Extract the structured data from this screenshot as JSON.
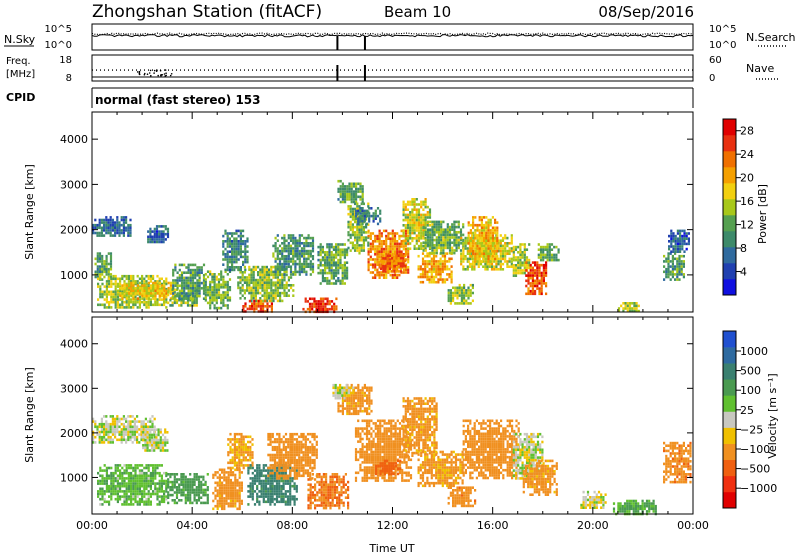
{
  "header": {
    "station": "Zhongshan Station (fitACF)",
    "beam": "Beam 10",
    "date": "08/Sep/2016"
  },
  "sky_panel": {
    "left_label": "N.Sky",
    "right_label": "N.Search",
    "tick_top": "10^5",
    "tick_bottom": "10^0",
    "right_tick_top": "10^5",
    "right_tick_bottom": "10^0"
  },
  "freq_panel": {
    "left_label_1": "Freq.",
    "left_label_2": "[MHz]",
    "right_label": "Nave",
    "left_ticks": [
      "18",
      "8"
    ],
    "right_ticks": [
      "60",
      "0"
    ]
  },
  "cpid": {
    "label": "CPID",
    "value": "normal (fast stereo) 153"
  },
  "colors": {
    "power_scale": [
      "#1010e0",
      "#2040b0",
      "#2f6a9e",
      "#3d8a6a",
      "#55a050",
      "#a8c81a",
      "#f2d010",
      "#f5a000",
      "#f07000",
      "#e83010",
      "#e00000"
    ],
    "velocity_scale": [
      "#2050d0",
      "#2e6aa0",
      "#3a8070",
      "#4a9a50",
      "#60c030",
      "#c8c8c0",
      "#f0c000",
      "#f09020",
      "#f06010",
      "#f03010",
      "#e00000"
    ]
  },
  "chart_data": [
    {
      "type": "heatmap",
      "panel": "power",
      "ylabel": "Slant Range [km]",
      "ylim": [
        180,
        4600
      ],
      "y_ticks": [
        "1000",
        "2000",
        "3000",
        "4000"
      ],
      "xlim_hours": [
        0,
        24
      ],
      "colorbar_label": "Power [dB]",
      "colorbar_range": [
        0,
        30
      ],
      "colorbar_ticks": [
        "4",
        "8",
        "12",
        "16",
        "20",
        "24",
        "28"
      ],
      "regions": [
        {
          "t": [
            0.0,
            1.5
          ],
          "r": [
            1850,
            2300
          ],
          "p": 7
        },
        {
          "t": [
            0.1,
            0.8
          ],
          "r": [
            900,
            1500
          ],
          "p": 12
        },
        {
          "t": [
            0.2,
            3.0
          ],
          "r": [
            300,
            1000
          ],
          "p": 15
        },
        {
          "t": [
            1.0,
            3.2
          ],
          "r": [
            500,
            850
          ],
          "p": 18
        },
        {
          "t": [
            2.2,
            3.0
          ],
          "r": [
            1700,
            2100
          ],
          "p": 6
        },
        {
          "t": [
            3.0,
            4.2
          ],
          "r": [
            300,
            700
          ],
          "p": 14
        },
        {
          "t": [
            3.2,
            4.5
          ],
          "r": [
            450,
            1250
          ],
          "p": 11
        },
        {
          "t": [
            4.5,
            5.5
          ],
          "r": [
            250,
            1100
          ],
          "p": 13
        },
        {
          "t": [
            5.2,
            6.2
          ],
          "r": [
            1100,
            2000
          ],
          "p": 9
        },
        {
          "t": [
            5.8,
            8.0
          ],
          "r": [
            400,
            1200
          ],
          "p": 14
        },
        {
          "t": [
            6.0,
            7.2
          ],
          "r": [
            220,
            450
          ],
          "p": 25
        },
        {
          "t": [
            7.2,
            8.8
          ],
          "r": [
            1000,
            1900
          ],
          "p": 10
        },
        {
          "t": [
            8.4,
            9.8
          ],
          "r": [
            200,
            500
          ],
          "p": 27
        },
        {
          "t": [
            9.0,
            10.2
          ],
          "r": [
            800,
            1700
          ],
          "p": 12
        },
        {
          "t": [
            9.8,
            10.8
          ],
          "r": [
            2600,
            3100
          ],
          "p": 12
        },
        {
          "t": [
            10.2,
            11.0
          ],
          "r": [
            1500,
            2600
          ],
          "p": 14
        },
        {
          "t": [
            10.5,
            11.5
          ],
          "r": [
            2100,
            2500
          ],
          "p": 8
        },
        {
          "t": [
            11.0,
            12.6
          ],
          "r": [
            950,
            2000
          ],
          "p": 22
        },
        {
          "t": [
            12.4,
            13.5
          ],
          "r": [
            1600,
            2700
          ],
          "p": 16
        },
        {
          "t": [
            11.5,
            12.5
          ],
          "r": [
            1050,
            1450
          ],
          "p": 23
        },
        {
          "t": [
            13.0,
            14.4
          ],
          "r": [
            850,
            1500
          ],
          "p": 20
        },
        {
          "t": [
            13.2,
            14.8
          ],
          "r": [
            1500,
            2200
          ],
          "p": 13
        },
        {
          "t": [
            14.2,
            15.2
          ],
          "r": [
            380,
            800
          ],
          "p": 14
        },
        {
          "t": [
            14.7,
            16.8
          ],
          "r": [
            1100,
            1900
          ],
          "p": 16
        },
        {
          "t": [
            15.0,
            16.2
          ],
          "r": [
            1300,
            2300
          ],
          "p": 19
        },
        {
          "t": [
            16.8,
            17.5
          ],
          "r": [
            1000,
            1700
          ],
          "p": 15
        },
        {
          "t": [
            17.3,
            18.1
          ],
          "r": [
            600,
            1300
          ],
          "p": 25
        },
        {
          "t": [
            17.8,
            18.6
          ],
          "r": [
            1300,
            1700
          ],
          "p": 12
        },
        {
          "t": [
            21.0,
            21.8
          ],
          "r": [
            200,
            400
          ],
          "p": 15
        },
        {
          "t": [
            22.8,
            23.6
          ],
          "r": [
            900,
            1500
          ],
          "p": 11
        },
        {
          "t": [
            23.0,
            23.8
          ],
          "r": [
            1500,
            2000
          ],
          "p": 6
        }
      ]
    },
    {
      "type": "heatmap",
      "panel": "velocity",
      "ylabel": "Slant Range [km]",
      "xlabel": "Time UT",
      "ylim": [
        180,
        4600
      ],
      "y_ticks": [
        "1000",
        "2000",
        "3000",
        "4000"
      ],
      "x_ticks": [
        "00:00",
        "04:00",
        "08:00",
        "12:00",
        "16:00",
        "20:00",
        "00:00"
      ],
      "xlim_hours": [
        0,
        24
      ],
      "colorbar_label": "Velocity [m s⁻¹]",
      "colorbar_ticks": [
        "1000",
        "500",
        "100",
        "25",
        "−25",
        "−100",
        "−500",
        "−1000"
      ],
      "regions": [
        {
          "t": [
            0.0,
            2.5
          ],
          "r": [
            1800,
            2400
          ],
          "v": 0
        },
        {
          "t": [
            0.2,
            3.0
          ],
          "r": [
            400,
            1300
          ],
          "v": 80
        },
        {
          "t": [
            2.0,
            3.0
          ],
          "r": [
            1600,
            2100
          ],
          "v": 0
        },
        {
          "t": [
            3.0,
            4.6
          ],
          "r": [
            400,
            1100
          ],
          "v": 150
        },
        {
          "t": [
            4.8,
            6.0
          ],
          "r": [
            300,
            1200
          ],
          "v": -150
        },
        {
          "t": [
            5.4,
            6.4
          ],
          "r": [
            1200,
            2000
          ],
          "v": -120
        },
        {
          "t": [
            6.2,
            8.2
          ],
          "r": [
            400,
            1300
          ],
          "v": 300
        },
        {
          "t": [
            7.0,
            9.0
          ],
          "r": [
            1000,
            2000
          ],
          "v": -180
        },
        {
          "t": [
            8.6,
            10.2
          ],
          "r": [
            300,
            1100
          ],
          "v": -250
        },
        {
          "t": [
            9.8,
            11.2
          ],
          "r": [
            2400,
            3100
          ],
          "v": -150
        },
        {
          "t": [
            9.6,
            10.4
          ],
          "r": [
            2800,
            3100
          ],
          "v": 0
        },
        {
          "t": [
            10.5,
            12.7
          ],
          "r": [
            900,
            2300
          ],
          "v": -180
        },
        {
          "t": [
            11.3,
            12.3
          ],
          "r": [
            1100,
            1400
          ],
          "v": -350
        },
        {
          "t": [
            12.4,
            13.8
          ],
          "r": [
            1500,
            2800
          ],
          "v": -140
        },
        {
          "t": [
            13.0,
            14.8
          ],
          "r": [
            800,
            1600
          ],
          "v": -130
        },
        {
          "t": [
            14.2,
            15.3
          ],
          "r": [
            380,
            800
          ],
          "v": -200
        },
        {
          "t": [
            14.8,
            17.0
          ],
          "r": [
            1000,
            2300
          ],
          "v": -160
        },
        {
          "t": [
            16.8,
            18.0
          ],
          "r": [
            1000,
            2000
          ],
          "v": 0
        },
        {
          "t": [
            17.2,
            18.6
          ],
          "r": [
            600,
            1400
          ],
          "v": -150
        },
        {
          "t": [
            19.5,
            20.5
          ],
          "r": [
            300,
            700
          ],
          "v": 0
        },
        {
          "t": [
            20.8,
            22.5
          ],
          "r": [
            200,
            500
          ],
          "v": 100
        },
        {
          "t": [
            22.8,
            23.9
          ],
          "r": [
            900,
            1800
          ],
          "v": -200
        }
      ]
    },
    {
      "type": "line",
      "panel": "noise",
      "series": [
        {
          "name": "N.Sky",
          "level": 0.55
        },
        {
          "name": "N.Search",
          "level": 0.62
        }
      ]
    },
    {
      "type": "line",
      "panel": "frequency",
      "series": [
        {
          "name": "Freq.",
          "value_mhz": 12.2
        },
        {
          "name": "Nave",
          "value": 3
        }
      ]
    }
  ]
}
